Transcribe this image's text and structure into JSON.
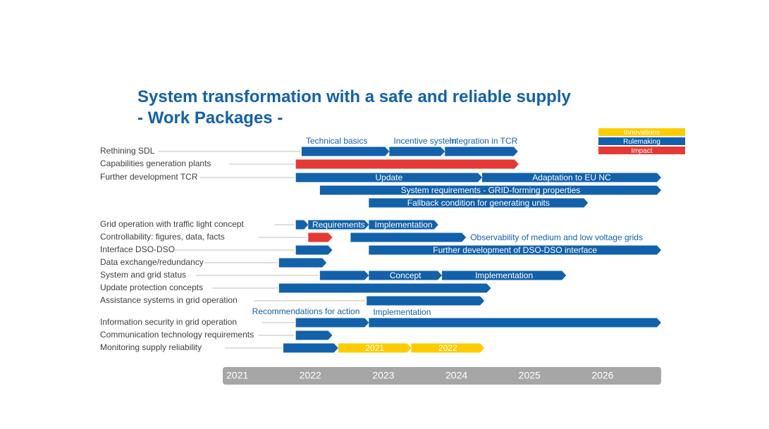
{
  "title": {
    "line1": "System transformation with a safe and reliable supply",
    "line2": "- Work Packages -"
  },
  "colors": {
    "title": "#1261ab",
    "rulemaking": "#1261ab",
    "impact": "#e53935",
    "innovations": "#ffcc00",
    "timeline_bg": "#a6a6a6",
    "label_text": "#404040"
  },
  "legend": [
    {
      "label": "Innovations",
      "category": "innovations"
    },
    {
      "label": "Rulemaking",
      "category": "rulemaking"
    },
    {
      "label": "Impact",
      "category": "impact"
    }
  ],
  "timeline": {
    "start": 2021.0,
    "end": 2027.0,
    "years": [
      "2021",
      "2022",
      "2023",
      "2024",
      "2025",
      "2026"
    ]
  },
  "rows": [
    {
      "label": "Rethining SDL",
      "bars": [
        {
          "start": 2022.08,
          "end": 2023.28,
          "category": "rulemaking",
          "label": "Technical basics",
          "label_pos": "above"
        },
        {
          "start": 2023.28,
          "end": 2024.04,
          "category": "rulemaking",
          "label": "Incentive system",
          "label_pos": "above"
        },
        {
          "start": 2024.04,
          "end": 2025.04,
          "category": "rulemaking",
          "label": "Integration in TCR",
          "label_pos": "above"
        }
      ]
    },
    {
      "label": "Capabilities generation plants",
      "bars": [
        {
          "start": 2022.0,
          "end": 2025.05,
          "category": "impact",
          "label": "",
          "label_pos": "inside"
        }
      ]
    },
    {
      "label": "Further development TCR",
      "bars": [
        {
          "start": 2022.0,
          "end": 2024.55,
          "category": "rulemaking",
          "label": "Update",
          "label_pos": "inside"
        },
        {
          "start": 2024.55,
          "end": 2027.0,
          "category": "rulemaking",
          "label": "Adaptation to EU NC",
          "label_pos": "inside"
        }
      ]
    },
    {
      "label": "",
      "bars": [
        {
          "start": 2022.33,
          "end": 2027.0,
          "category": "rulemaking",
          "label": "System requirements - GRID-forming properties",
          "label_pos": "inside"
        }
      ]
    },
    {
      "label": "",
      "bars": [
        {
          "start": 2023.0,
          "end": 2026.0,
          "category": "rulemaking",
          "label": "Fallback condition for generating units",
          "label_pos": "inside"
        }
      ]
    },
    {
      "label": "Grid operation with traffic light concept",
      "bars": [
        {
          "start": 2022.0,
          "end": 2022.17,
          "category": "rulemaking",
          "label": "",
          "label_pos": "inside"
        },
        {
          "start": 2022.17,
          "end": 2023.0,
          "category": "rulemaking",
          "label": "Requirements",
          "label_pos": "inside"
        },
        {
          "start": 2023.0,
          "end": 2023.95,
          "category": "rulemaking",
          "label": "Implementation",
          "label_pos": "inside"
        }
      ]
    },
    {
      "label": "Controllability: figures, data, facts",
      "bars": [
        {
          "start": 2022.17,
          "end": 2022.5,
          "category": "impact",
          "label": "",
          "label_pos": "inside"
        },
        {
          "start": 2022.75,
          "end": 2024.33,
          "category": "rulemaking",
          "label": "Observability of medium and low voltage grids",
          "label_pos": "right"
        }
      ]
    },
    {
      "label": "Interface DSO-DSO",
      "bars": [
        {
          "start": 2022.0,
          "end": 2022.5,
          "category": "rulemaking",
          "label": "",
          "label_pos": "inside"
        },
        {
          "start": 2023.0,
          "end": 2027.0,
          "category": "rulemaking",
          "label": "Further development of DSO-DSO interface",
          "label_pos": "inside"
        }
      ]
    },
    {
      "label": "Data exchange/redundancy",
      "bars": [
        {
          "start": 2021.77,
          "end": 2022.42,
          "category": "rulemaking",
          "label": "",
          "label_pos": "inside"
        }
      ]
    },
    {
      "label": "System and grid status",
      "bars": [
        {
          "start": 2022.33,
          "end": 2023.0,
          "category": "rulemaking",
          "label": "",
          "label_pos": "inside"
        },
        {
          "start": 2023.0,
          "end": 2024.0,
          "category": "rulemaking",
          "label": "Concept",
          "label_pos": "inside"
        },
        {
          "start": 2024.0,
          "end": 2025.7,
          "category": "rulemaking",
          "label": "Implementation",
          "label_pos": "inside"
        }
      ]
    },
    {
      "label": "Update protection concepts",
      "bars": [
        {
          "start": 2021.77,
          "end": 2024.67,
          "category": "rulemaking",
          "label": "",
          "label_pos": "inside"
        }
      ]
    },
    {
      "label": "Assistance systems in grid operation",
      "bars": [
        {
          "start": 2022.97,
          "end": 2024.58,
          "category": "rulemaking",
          "label": "",
          "label_pos": "inside"
        }
      ]
    },
    {
      "label": "Information security in grid operation",
      "bars": [
        {
          "start": 2022.0,
          "end": 2023.0,
          "category": "rulemaking",
          "label": "Recommendations for action",
          "label_pos": "above-left"
        },
        {
          "start": 2023.0,
          "end": 2027.0,
          "category": "rulemaking",
          "label": "Implementation",
          "label_pos": "above"
        }
      ]
    },
    {
      "label": "Communication technology requirements",
      "bars": [
        {
          "start": 2022.0,
          "end": 2022.5,
          "category": "rulemaking",
          "label": "",
          "label_pos": "inside"
        }
      ]
    },
    {
      "label": "Monitoring supply reliability",
      "bars": [
        {
          "start": 2021.83,
          "end": 2022.58,
          "category": "rulemaking",
          "label": "",
          "label_pos": "inside"
        },
        {
          "start": 2022.58,
          "end": 2023.58,
          "category": "innovations",
          "label": "2021",
          "label_pos": "inside"
        },
        {
          "start": 2023.58,
          "end": 2024.58,
          "category": "innovations",
          "label": "2022",
          "label_pos": "inside"
        }
      ]
    }
  ]
}
